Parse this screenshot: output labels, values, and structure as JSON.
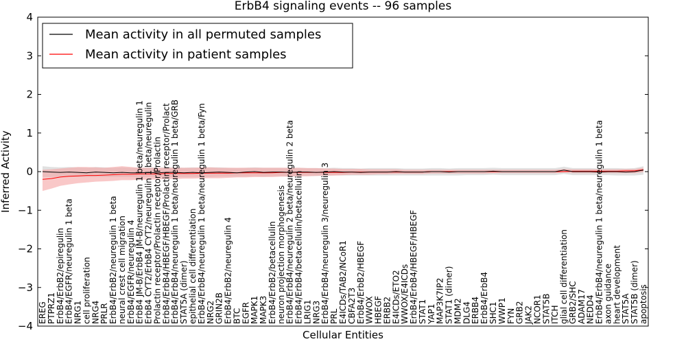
{
  "chart_data": {
    "type": "line",
    "title": "ErbB4 signaling events -- 96 samples",
    "xlabel": "Cellular Entities",
    "ylabel": "Inferred Activity",
    "ylim": [
      -4,
      4
    ],
    "yticks": [
      -4,
      -3,
      -2,
      -1,
      0,
      1,
      2,
      3,
      4
    ],
    "grid": false,
    "legend_position": "top-left",
    "categories": [
      "EREG",
      "PTPRZ1",
      "ErbB4/ErbB2/epiregulin",
      "ErbB4/EGFR/neuregulin 1 beta",
      "NRG1",
      "cell proliferation",
      "NRG4",
      "PRLR",
      "ErbB4/ErbB2/neuregulin 1 beta",
      "neural crest cell migration",
      "ErbB4/EGFR/neuregulin 4",
      "ErbB4 JM-B/ErbB4 JM-B/neuregulin 1 beta/neuregulin 1",
      "ErbB4 CYT2/ErbB4 CYT2/neuregulin 1 beta/neuregulin",
      "Prolactin receptor/Prolactin receptor/Prolactin",
      "ErbB4/ErbB4/HBEGF/HBEGF/Prolactin receptor/Prolact",
      "ErbB4/ErbB4/neuregulin 1 beta/neuregulin 1 beta/GRB",
      "STAT5A (dimer)",
      "epithelial cell differentiation",
      "ErbB4/ErbB4/neuregulin 1 beta/neuregulin 1 beta/Fyn",
      "NRG2",
      "GRIN2B",
      "ErbB4/ErbB2/neuregulin 4",
      "BTC",
      "EGFR",
      "MAPK1",
      "MAPK3",
      "ErbB4/ErbB2/betacellulin",
      "neuron projection morphogenesis",
      "ErbB4/ErbB4/neuregulin 2 beta/neuregulin 2 beta",
      "ErbB4/ErbB4/betacellulin/betacellulin",
      "LRIG1",
      "NRG3",
      "ErbB4/ErbB4/neuregulin 3/neuregulin 3",
      "PRL",
      "E4ICDs/TAB2/NCoR1",
      "CBFA2T3",
      "ErbB4/ErbB2/HBEGF",
      "WWOX",
      "HBEGF",
      "ERBB2",
      "E4ICDs/ETO2",
      "WWOX/E4ICDs",
      "ErbB4/ErbB4/HBEGF/HBEGF",
      "STAT1",
      "YAP1",
      "MAP3K7IP2",
      "STAT1 (dimer)",
      "MDM2",
      "DLG4",
      "ERBB4",
      "ErbB4/ErbB4",
      "SHC1",
      "WWP1",
      "FYN",
      "GRB2",
      "JAK2",
      "NCOR1",
      "STAT5B",
      "ITCH",
      "glial cell differentiation",
      "GRB2/SHC",
      "ADAM17",
      "NEDD4",
      "ErbB4/ErbB4/neuregulin 1 beta/neuregulin 1 beta",
      "axon guidance",
      "heart development",
      "STAT5A",
      "STAT5B (dimer)",
      "apoptosis"
    ],
    "series": [
      {
        "name": "Mean activity in all permuted samples",
        "color": "#000000",
        "band_color": "#c8c8c8",
        "values": [
          0.0,
          -0.01,
          -0.02,
          -0.01,
          -0.02,
          -0.03,
          -0.01,
          -0.02,
          -0.03,
          -0.02,
          -0.03,
          -0.03,
          -0.02,
          -0.03,
          -0.02,
          -0.02,
          -0.03,
          -0.02,
          -0.03,
          -0.02,
          -0.01,
          -0.02,
          -0.03,
          -0.01,
          0.0,
          -0.02,
          -0.01,
          -0.01,
          -0.02,
          -0.01,
          -0.01,
          -0.02,
          -0.01,
          0.0,
          -0.01,
          -0.01,
          -0.02,
          -0.01,
          -0.01,
          -0.01,
          0.0,
          -0.01,
          -0.01,
          -0.01,
          0.0,
          0.0,
          -0.01,
          0.0,
          0.0,
          0.0,
          0.0,
          0.01,
          0.0,
          0.0,
          0.0,
          0.0,
          0.0,
          0.0,
          0.0,
          0.04,
          0.0,
          0.0,
          0.0,
          -0.01,
          0.0,
          0.0,
          -0.01,
          0.0,
          0.04
        ],
        "lower": [
          -0.14,
          -0.14,
          -0.14,
          -0.14,
          -0.14,
          -0.14,
          -0.14,
          -0.14,
          -0.14,
          -0.14,
          -0.14,
          -0.14,
          -0.14,
          -0.14,
          -0.14,
          -0.14,
          -0.14,
          -0.14,
          -0.14,
          -0.14,
          -0.13,
          -0.13,
          -0.13,
          -0.13,
          -0.12,
          -0.13,
          -0.12,
          -0.12,
          -0.12,
          -0.12,
          -0.11,
          -0.11,
          -0.11,
          -0.1,
          -0.1,
          -0.1,
          -0.1,
          -0.1,
          -0.1,
          -0.1,
          -0.1,
          -0.1,
          -0.1,
          -0.1,
          -0.1,
          -0.1,
          -0.1,
          -0.1,
          -0.09,
          -0.09,
          -0.09,
          -0.08,
          -0.09,
          -0.09,
          -0.09,
          -0.09,
          -0.09,
          -0.09,
          -0.09,
          -0.06,
          -0.09,
          -0.09,
          -0.09,
          -0.09,
          -0.09,
          -0.1,
          -0.1,
          -0.1,
          -0.08
        ],
        "upper": [
          0.14,
          0.12,
          0.11,
          0.12,
          0.11,
          0.1,
          0.12,
          0.11,
          0.1,
          0.11,
          0.1,
          0.1,
          0.11,
          0.1,
          0.11,
          0.11,
          0.1,
          0.11,
          0.1,
          0.11,
          0.11,
          0.1,
          0.09,
          0.1,
          0.11,
          0.1,
          0.1,
          0.1,
          0.09,
          0.1,
          0.09,
          0.09,
          0.09,
          0.1,
          0.09,
          0.09,
          0.08,
          0.09,
          0.09,
          0.09,
          0.09,
          0.08,
          0.08,
          0.08,
          0.09,
          0.09,
          0.08,
          0.09,
          0.09,
          0.09,
          0.09,
          0.1,
          0.09,
          0.09,
          0.09,
          0.09,
          0.09,
          0.09,
          0.09,
          0.13,
          0.09,
          0.09,
          0.09,
          0.08,
          0.09,
          0.09,
          0.08,
          0.09,
          0.14
        ]
      },
      {
        "name": "Mean activity in patient samples",
        "color": "#ff0000",
        "band_color": "#f5a3a3",
        "values": [
          -0.2,
          -0.18,
          -0.14,
          -0.12,
          -0.11,
          -0.1,
          -0.1,
          -0.09,
          -0.08,
          -0.07,
          -0.07,
          -0.06,
          -0.06,
          -0.06,
          -0.05,
          -0.05,
          -0.05,
          -0.05,
          -0.04,
          -0.04,
          -0.04,
          -0.04,
          -0.03,
          -0.03,
          -0.03,
          -0.03,
          -0.03,
          -0.02,
          -0.02,
          -0.02,
          -0.02,
          -0.02,
          -0.02,
          -0.02,
          -0.02,
          -0.01,
          -0.01,
          -0.01,
          -0.01,
          -0.01,
          -0.01,
          -0.01,
          -0.01,
          -0.01,
          0.0,
          0.0,
          0.0,
          0.0,
          0.0,
          0.0,
          0.0,
          0.0,
          0.0,
          0.0,
          0.0,
          0.0,
          0.0,
          0.0,
          0.0,
          0.0,
          0.01,
          0.01,
          0.01,
          0.01,
          0.01,
          0.01,
          0.02,
          0.02,
          0.05
        ],
        "lower": [
          -0.5,
          -0.44,
          -0.37,
          -0.33,
          -0.3,
          -0.28,
          -0.26,
          -0.25,
          -0.24,
          -0.22,
          -0.22,
          -0.21,
          -0.21,
          -0.2,
          -0.19,
          -0.19,
          -0.18,
          -0.18,
          -0.17,
          -0.17,
          -0.17,
          -0.16,
          -0.15,
          -0.15,
          -0.14,
          -0.14,
          -0.14,
          -0.13,
          -0.13,
          -0.12,
          -0.12,
          -0.11,
          -0.1,
          -0.1,
          -0.09,
          -0.08,
          -0.08,
          -0.08,
          -0.07,
          -0.07,
          -0.06,
          -0.06,
          -0.06,
          -0.06,
          -0.05,
          -0.05,
          -0.05,
          -0.05,
          -0.05,
          -0.05,
          -0.05,
          -0.04,
          -0.04,
          -0.04,
          -0.04,
          -0.04,
          -0.04,
          -0.04,
          -0.04,
          -0.02,
          -0.04,
          -0.04,
          -0.04,
          -0.04,
          -0.04,
          -0.04,
          -0.04,
          -0.04,
          -0.01
        ],
        "upper": [
          0.05,
          0.06,
          0.08,
          0.1,
          0.12,
          0.12,
          0.11,
          0.1,
          0.12,
          0.14,
          0.12,
          0.1,
          0.1,
          0.1,
          0.1,
          0.1,
          0.1,
          0.1,
          0.11,
          0.11,
          0.1,
          0.1,
          0.1,
          0.1,
          0.1,
          0.1,
          0.1,
          0.1,
          0.1,
          0.1,
          0.09,
          0.09,
          0.08,
          0.08,
          0.07,
          0.07,
          0.07,
          0.06,
          0.06,
          0.06,
          0.06,
          0.05,
          0.05,
          0.05,
          0.05,
          0.05,
          0.05,
          0.05,
          0.05,
          0.05,
          0.05,
          0.05,
          0.05,
          0.05,
          0.05,
          0.05,
          0.05,
          0.05,
          0.05,
          0.07,
          0.06,
          0.06,
          0.06,
          0.06,
          0.06,
          0.06,
          0.07,
          0.07,
          0.1
        ]
      }
    ]
  }
}
